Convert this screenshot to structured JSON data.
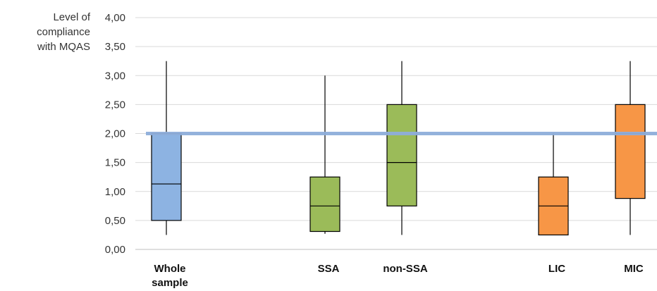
{
  "chart_data": {
    "type": "boxplot",
    "ylabel_lines": [
      "Level of",
      "compliance",
      "with MQAS"
    ],
    "ylim": [
      0,
      4
    ],
    "yticks": [
      0,
      0.5,
      1,
      1.5,
      2,
      2.5,
      3,
      3.5,
      4
    ],
    "ytick_labels": [
      "0,00",
      "0,50",
      "1,00",
      "1,50",
      "2,00",
      "2,50",
      "3,00",
      "3,50",
      "4,00"
    ],
    "grid": true,
    "threshold": {
      "value": 2.0,
      "color": "#8faedb"
    },
    "categories": [
      {
        "label_lines": [
          "Whole",
          "sample"
        ],
        "min": 0.25,
        "q1": 0.5,
        "median": 1.13,
        "q3": 2.0,
        "max": 3.25,
        "color": "#8db3e2"
      },
      {
        "label_lines": [
          "SSA"
        ],
        "min": 0.27,
        "q1": 0.31,
        "median": 0.75,
        "q3": 1.25,
        "max": 3.0,
        "color": "#9bbb59"
      },
      {
        "label_lines": [
          "non-SSA"
        ],
        "min": 0.25,
        "q1": 0.75,
        "median": 1.5,
        "q3": 2.5,
        "max": 3.25,
        "color": "#9bbb59"
      },
      {
        "label_lines": [
          "LIC"
        ],
        "min": 0.25,
        "q1": 0.25,
        "median": 0.75,
        "q3": 1.25,
        "max": 2.0,
        "color": "#f79646"
      },
      {
        "label_lines": [
          "MIC"
        ],
        "min": 0.25,
        "q1": 0.88,
        "median": 2.0,
        "q3": 2.5,
        "max": 3.25,
        "color": "#f79646"
      }
    ]
  }
}
